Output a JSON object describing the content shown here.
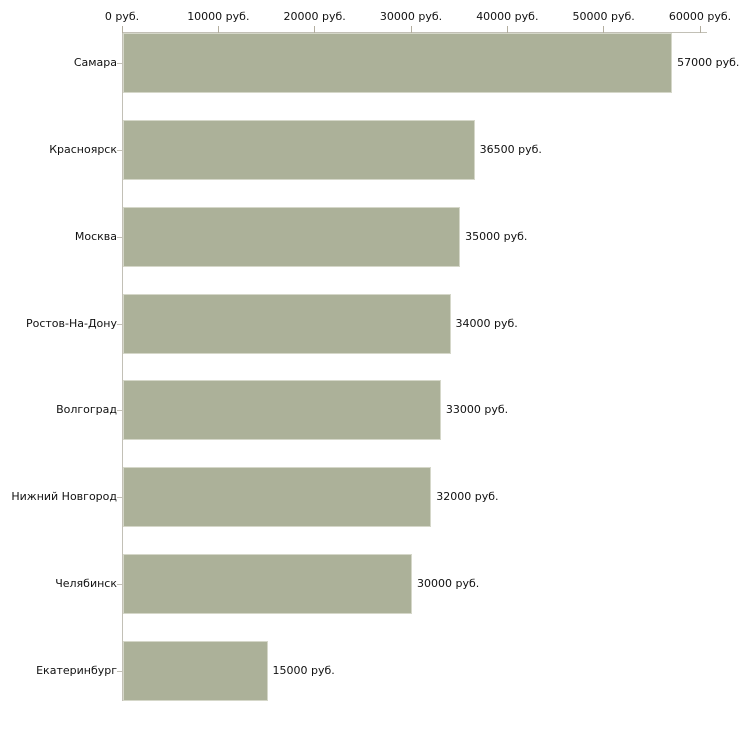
{
  "chart_data": {
    "type": "bar",
    "orientation": "horizontal",
    "title": "",
    "xlabel": "",
    "ylabel": "",
    "unit": "руб.",
    "categories": [
      "Самара",
      "Красноярск",
      "Москва",
      "Ростов-На-Дону",
      "Волгоград",
      "Нижний Новгород",
      "Челябинск",
      "Екатеринбург"
    ],
    "values": [
      57000,
      36500,
      35000,
      34000,
      33000,
      32000,
      30000,
      15000
    ],
    "value_labels": [
      "57000 руб.",
      "36500 руб.",
      "35000 руб.",
      "34000 руб.",
      "33000 руб.",
      "32000 руб.",
      "30000 руб.",
      "15000 руб."
    ],
    "x_ticks": [
      0,
      10000,
      20000,
      30000,
      40000,
      50000,
      60000
    ],
    "x_tick_labels": [
      "0 руб.",
      "10000 руб.",
      "20000 руб.",
      "30000 руб.",
      "40000 руб.",
      "50000 руб.",
      "60000 руб."
    ],
    "xlim": [
      0,
      60000
    ],
    "x_axis_position": "top",
    "grid": false,
    "legend": false,
    "colors": {
      "bar_fill": "#acb199",
      "bar_border": "#d5d7c9",
      "axis_line": "#c2c0b6",
      "tick": "#b3ae9f",
      "text": "#111111",
      "background": "#ffffff"
    }
  }
}
